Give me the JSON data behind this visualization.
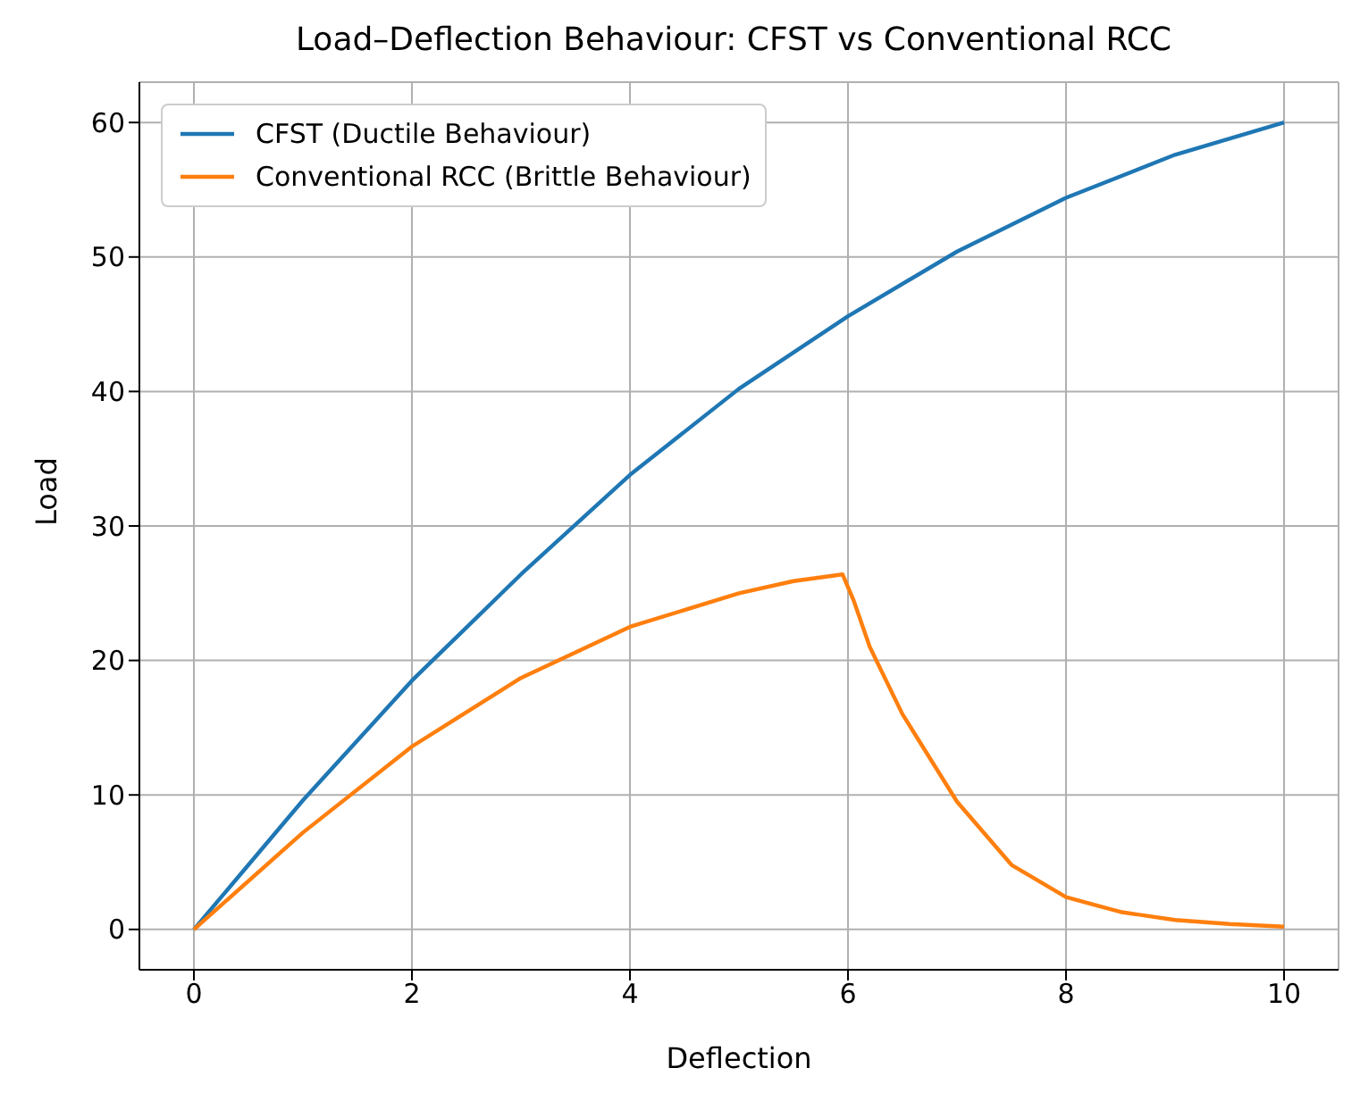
{
  "chart_data": {
    "type": "line",
    "title": "Load–Deflection Behaviour: CFST vs Conventional RCC",
    "xlabel": "Deflection",
    "ylabel": "Load",
    "xlim": [
      -0.5,
      10.5
    ],
    "xticks": [
      0,
      2,
      4,
      6,
      8,
      10
    ],
    "ylim": [
      -3,
      63
    ],
    "yticks": [
      0,
      10,
      20,
      30,
      40,
      50,
      60
    ],
    "grid": true,
    "legend": "top left",
    "marker": "none",
    "line_style": "solid",
    "series": [
      {
        "name": "CFST (Ductile Behaviour)",
        "color": "#1f77b4",
        "x": [
          0,
          1,
          2,
          3,
          4,
          5,
          6,
          7,
          8,
          9,
          10
        ],
        "values": [
          0,
          9.6,
          18.5,
          26.4,
          33.8,
          40.2,
          45.6,
          50.4,
          54.4,
          57.6,
          60
        ]
      },
      {
        "name": "Conventional RCC (Brittle Behaviour)",
        "color": "#ff7f0e",
        "x": [
          0,
          1,
          2,
          3,
          4,
          5,
          5.5,
          5.95,
          6.05,
          6.2,
          6.5,
          7,
          7.5,
          8,
          8.5,
          9,
          9.5,
          10
        ],
        "values": [
          0,
          7.2,
          13.6,
          18.7,
          22.5,
          25,
          25.9,
          26.4,
          24.5,
          21,
          16,
          9.5,
          4.8,
          2.4,
          1.3,
          0.7,
          0.4,
          0.2
        ]
      }
    ]
  }
}
